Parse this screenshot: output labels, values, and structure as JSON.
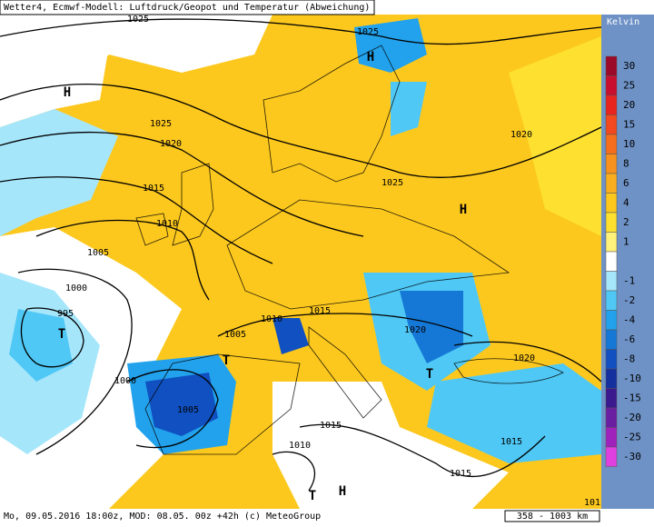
{
  "header": {
    "title": "Wetter4, Ecmwf-Modell: Luftdruck/Geopot und Temperatur (Abweichung)"
  },
  "legend": {
    "title": "Kelvin",
    "levels": [
      30,
      25,
      20,
      15,
      10,
      8,
      6,
      4,
      2,
      1,
      null,
      -1,
      -2,
      -4,
      -6,
      -8,
      -10,
      -15,
      -20,
      -25,
      -30
    ],
    "colors": [
      "#9c0a2a",
      "#c8102e",
      "#e8241e",
      "#f24a1e",
      "#f46e1e",
      "#f7921e",
      "#f9ae20",
      "#fcc81e",
      "#fde030",
      "#fff27a",
      "#ffffff",
      "#a6e6fb",
      "#4fc8f5",
      "#22a2ec",
      "#1578d6",
      "#1050c0",
      "#14309e",
      "#3a1a8e",
      "#6a1ea2",
      "#a022bc",
      "#e040e0"
    ]
  },
  "map": {
    "isobar_labels": [
      "1025",
      "1025",
      "1025",
      "1020",
      "1015",
      "1010",
      "1005",
      "1000",
      "995",
      "1000",
      "1005",
      "1005",
      "1010",
      "1015",
      "1020",
      "1020",
      "1020",
      "1025",
      "1015",
      "1010",
      "1015",
      "1015",
      "101"
    ],
    "pressure_centers": [
      "H",
      "H",
      "H",
      "T",
      "T",
      "T",
      "T",
      "H"
    ]
  },
  "footer": {
    "run_info": "Mo, 09.05.2016 18:00z, MOD: 08.05. 00z +42h (c) MeteoGroup",
    "scale": "358 - 1003 km"
  }
}
